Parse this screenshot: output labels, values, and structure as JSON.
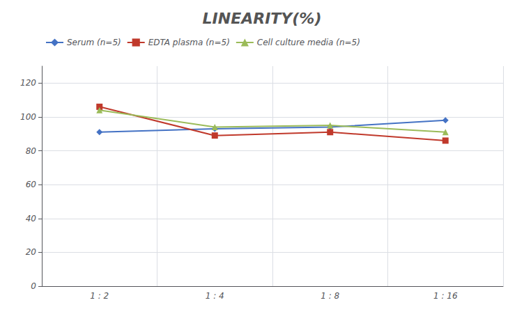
{
  "chart_data": {
    "type": "line",
    "title": "LINEARITY(%)",
    "categories": [
      "1 : 2",
      "1 : 4",
      "1 : 8",
      "1 : 16"
    ],
    "series": [
      {
        "name": "Serum (n=5)",
        "color": "#4472C4",
        "marker": "diamond",
        "values": [
          91,
          93,
          94,
          98
        ]
      },
      {
        "name": "EDTA plasma (n=5)",
        "color": "#C0392B",
        "marker": "square",
        "values": [
          106,
          89,
          91,
          86
        ]
      },
      {
        "name": "Cell culture media (n=5)",
        "color": "#9BBB59",
        "marker": "triangle",
        "values": [
          104,
          94,
          95,
          91
        ]
      }
    ],
    "ylim": [
      0,
      130
    ],
    "yticks": [
      0,
      20,
      40,
      60,
      80,
      100,
      120
    ],
    "grid": true,
    "legend": "upper left"
  }
}
